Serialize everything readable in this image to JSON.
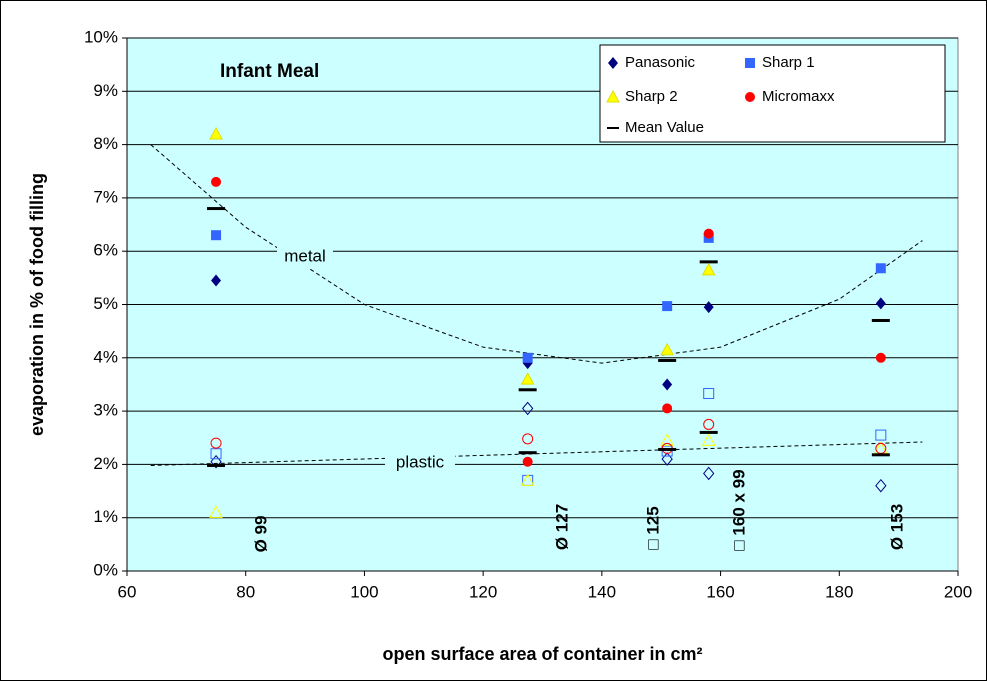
{
  "chart_data": {
    "type": "scatter",
    "title": "Infant Meal",
    "x_label": "open surface area of container in cm²",
    "y_label": "evaporation in % of food filling",
    "x": [
      75,
      127.5,
      151,
      158,
      187
    ],
    "series": [
      {
        "name": "Panasonic",
        "color": "#000080",
        "marker": "diamond",
        "values": [
          5.45,
          3.9,
          3.5,
          4.95,
          5.02
        ],
        "plastic_values": [
          2.05,
          3.05,
          2.1,
          1.83,
          1.6
        ]
      },
      {
        "name": "Sharp 1",
        "color": "#3366ff",
        "marker": "square",
        "values": [
          6.3,
          4.0,
          4.97,
          6.25,
          5.68
        ],
        "plastic_values": [
          2.2,
          1.7,
          2.25,
          3.33,
          2.55
        ]
      },
      {
        "name": "Sharp 2",
        "color": "#ffff00",
        "marker": "triangle",
        "values": [
          8.2,
          3.6,
          4.15,
          5.65,
          null
        ],
        "plastic_values": [
          1.1,
          1.7,
          2.45,
          2.45,
          2.3
        ]
      },
      {
        "name": "Micromaxx",
        "color": "#ff0000",
        "marker": "circle",
        "values": [
          7.3,
          2.05,
          3.05,
          6.33,
          4.0
        ],
        "plastic_values": [
          2.4,
          2.48,
          2.3,
          2.75,
          2.3
        ]
      },
      {
        "name": "Mean Value",
        "color": "#000000",
        "marker": "dash",
        "values": [
          6.8,
          3.4,
          3.95,
          5.8,
          4.7
        ],
        "plastic_values": [
          1.98,
          2.22,
          2.28,
          2.6,
          2.18
        ]
      }
    ],
    "trendlines": [
      {
        "label": "metal",
        "x": [
          64,
          80,
          100,
          120,
          140,
          160,
          180,
          194
        ],
        "values": [
          8.0,
          6.45,
          5.0,
          4.2,
          3.9,
          4.2,
          5.1,
          6.2
        ]
      },
      {
        "label": "plastic",
        "x": [
          64,
          194
        ],
        "values": [
          1.98,
          2.42
        ]
      }
    ],
    "annotations": [
      "Ø 99",
      "Ø 127",
      "□ 125",
      "□ 160 x 99",
      "Ø 153"
    ],
    "xlim": [
      60,
      200
    ],
    "xticks": [
      60,
      80,
      100,
      120,
      140,
      160,
      180,
      200
    ],
    "ylim": [
      0,
      10
    ],
    "yticks": [
      {
        "value": 0,
        "label": "0%"
      },
      {
        "value": 1,
        "label": "1%"
      },
      {
        "value": 2,
        "label": "2%"
      },
      {
        "value": 3,
        "label": "3%"
      },
      {
        "value": 4,
        "label": "4%"
      },
      {
        "value": 5,
        "label": "5%"
      },
      {
        "value": 6,
        "label": "6%"
      },
      {
        "value": 7,
        "label": "7%"
      },
      {
        "value": 8,
        "label": "8%"
      },
      {
        "value": 9,
        "label": "9%"
      },
      {
        "value": 10,
        "label": "10%"
      }
    ],
    "grid": true,
    "legend": "upper right"
  }
}
